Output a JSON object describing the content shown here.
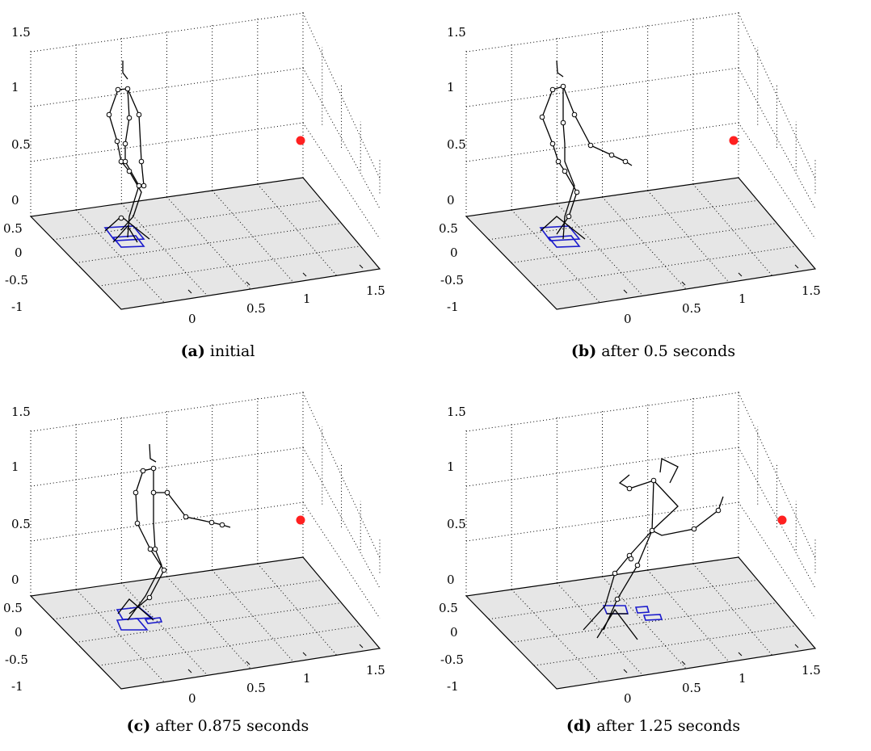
{
  "axes": {
    "z_ticks": [
      "1.5",
      "1",
      "0.5",
      "0"
    ],
    "y_ticks": [
      "0.5",
      "0",
      "-0.5",
      "-1"
    ],
    "x_ticks": [
      "0",
      "0.5",
      "1",
      "1.5"
    ]
  },
  "colors": {
    "floor": "#e6e6e6",
    "target": "#ff2020",
    "skeleton": "#000000",
    "feet": "#1a1acc"
  },
  "panels": [
    {
      "letter": "(a)",
      "text": "initial"
    },
    {
      "letter": "(b)",
      "text": "after 0.5 seconds"
    },
    {
      "letter": "(c)",
      "text": "after 0.875 seconds"
    },
    {
      "letter": "(d)",
      "text": "after 1.25 seconds"
    }
  ]
}
